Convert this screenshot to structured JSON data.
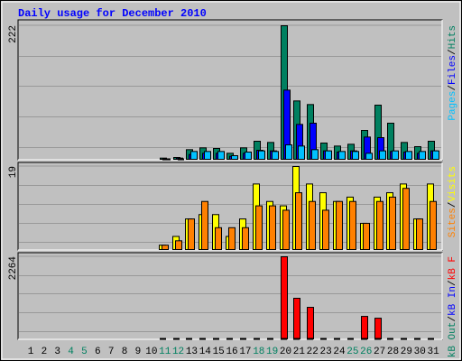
{
  "title": "Daily usage for December 2010",
  "separator": "/",
  "chart_data": [
    {
      "type": "bar",
      "ylim": [
        0,
        222
      ],
      "yticks": [
        222
      ],
      "series": [
        {
          "name": "Hits",
          "color": "#008060",
          "values": [
            null,
            null,
            null,
            null,
            null,
            null,
            null,
            null,
            null,
            null,
            2,
            3,
            16,
            19,
            18,
            10,
            19,
            30,
            28,
            222,
            97,
            91,
            27,
            22,
            25,
            48,
            90,
            60,
            28,
            21,
            30
          ]
        },
        {
          "name": "Files",
          "color": "#0000ff",
          "values": [
            null,
            null,
            null,
            null,
            null,
            null,
            null,
            null,
            null,
            null,
            1,
            2,
            8,
            10,
            10,
            5,
            10,
            15,
            14,
            115,
            58,
            60,
            14,
            12,
            14,
            37,
            36,
            13,
            12,
            10,
            14
          ]
        },
        {
          "name": "Pages",
          "color": "#00c0ff",
          "values": [
            null,
            null,
            null,
            null,
            null,
            null,
            null,
            null,
            null,
            null,
            0,
            1,
            13,
            13,
            13,
            6,
            12,
            14,
            13,
            24,
            22,
            16,
            14,
            13,
            13,
            10,
            14,
            14,
            13,
            13,
            14
          ]
        }
      ]
    },
    {
      "type": "bar",
      "ylim": [
        0,
        19
      ],
      "yticks": [
        19
      ],
      "series": [
        {
          "name": "Visits",
          "color": "#ffff00",
          "values": [
            null,
            null,
            null,
            null,
            null,
            null,
            null,
            null,
            null,
            null,
            1,
            3,
            7,
            8,
            8,
            3,
            7,
            15,
            11,
            10,
            19,
            15,
            13,
            11,
            12,
            6,
            12,
            13,
            15,
            7,
            15
          ]
        },
        {
          "name": "Sites",
          "color": "#ff8000",
          "values": [
            null,
            null,
            null,
            null,
            null,
            null,
            null,
            null,
            null,
            null,
            1,
            2,
            7,
            11,
            5,
            5,
            5,
            10,
            10,
            9,
            13,
            11,
            9,
            11,
            11,
            6,
            11,
            12,
            14,
            7,
            11
          ]
        }
      ]
    },
    {
      "type": "bar",
      "ylim": [
        0,
        2264
      ],
      "yticks": [
        2264
      ],
      "categories": [
        "1",
        "2",
        "3",
        "4",
        "5",
        "6",
        "7",
        "8",
        "9",
        "10",
        "11",
        "12",
        "13",
        "14",
        "15",
        "16",
        "17",
        "18",
        "19",
        "20",
        "21",
        "22",
        "23",
        "24",
        "25",
        "26",
        "27",
        "28",
        "29",
        "30",
        "31"
      ],
      "category_colors": [
        "#000000",
        "#000000",
        "#000000",
        "#008060",
        "#008060",
        "#000000",
        "#000000",
        "#000000",
        "#000000",
        "#000000",
        "#008060",
        "#008060",
        "#000000",
        "#000000",
        "#000000",
        "#000000",
        "#000000",
        "#008060",
        "#008060",
        "#000000",
        "#000000",
        "#000000",
        "#000000",
        "#000000",
        "#008060",
        "#008060",
        "#000000",
        "#000000",
        "#000000",
        "#000000",
        "#000000"
      ],
      "series": [
        {
          "name": "kB F",
          "color": "#ff0000",
          "values": [
            null,
            null,
            null,
            null,
            null,
            null,
            null,
            null,
            null,
            null,
            0,
            0,
            0,
            0,
            0,
            0,
            0,
            0,
            0,
            2264,
            1120,
            870,
            0,
            0,
            0,
            620,
            570,
            0,
            0,
            0,
            0
          ]
        },
        {
          "name": "kB In",
          "color": "#0000ff",
          "values": [
            null,
            null,
            null,
            null,
            null,
            null,
            null,
            null,
            null,
            null,
            0,
            0,
            0,
            0,
            0,
            0,
            0,
            0,
            0,
            0,
            0,
            0,
            0,
            0,
            0,
            0,
            0,
            0,
            0,
            0,
            0
          ]
        },
        {
          "name": "kB Out",
          "color": "#008060",
          "values": [
            null,
            null,
            null,
            null,
            null,
            null,
            null,
            null,
            null,
            null,
            0,
            0,
            0,
            0,
            0,
            0,
            0,
            0,
            0,
            0,
            0,
            0,
            0,
            0,
            0,
            0,
            0,
            0,
            0,
            0,
            0
          ]
        }
      ]
    }
  ]
}
